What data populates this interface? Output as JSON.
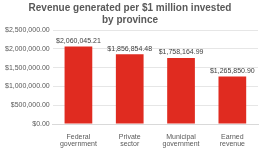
{
  "chart_data": {
    "type": "bar",
    "title": "Revenue generated per $1 million invested by province",
    "categories": [
      "Federal government",
      "Private sector",
      "Municipal government",
      "Earned revenue"
    ],
    "values": [
      2060045.21,
      1856854.48,
      1758164.99,
      1265850.9
    ],
    "value_labels": [
      "$2,060,045.21",
      "$1,856,854.48",
      "$1,758,164.99",
      "$1,265,850.90"
    ],
    "data_labels": true,
    "color": "#e02b20",
    "ylim": [
      0,
      2500000
    ],
    "yticks": [
      {
        "value": 0,
        "label": "$0.00"
      },
      {
        "value": 500000,
        "label": "$500,000.00"
      },
      {
        "value": 1000000,
        "label": "$1,000,000.00"
      },
      {
        "value": 1500000,
        "label": "$1,500,000.00"
      },
      {
        "value": 2000000,
        "label": "$2,000,000.00"
      },
      {
        "value": 2500000,
        "label": "$2,500,000.00"
      }
    ],
    "grid": true
  }
}
